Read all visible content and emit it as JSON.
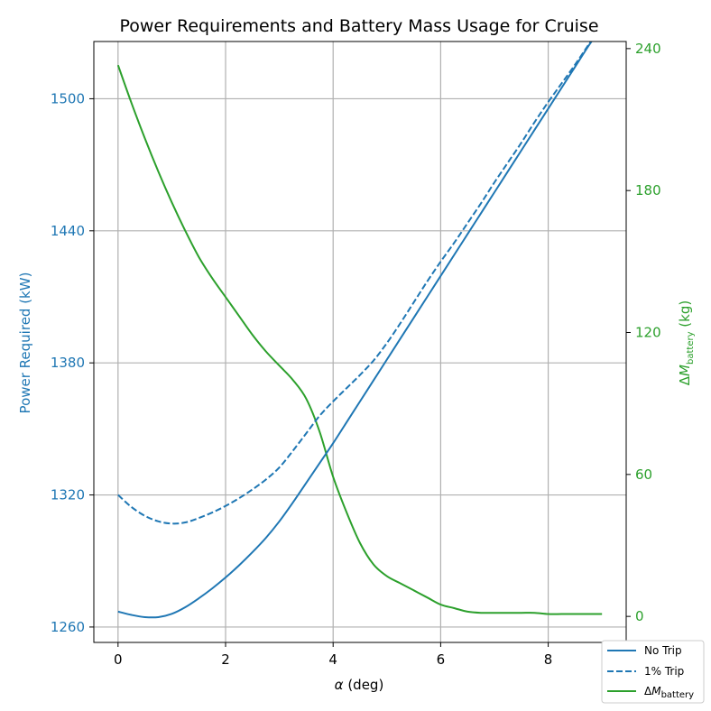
{
  "chart_data": {
    "type": "line",
    "title": "Power Requirements and Battery Mass Usage for Cruise",
    "xlabel": {
      "symbol": "α",
      "unit": " (deg)"
    },
    "ylabel_left": "Power Required (kW)",
    "ylabel_right": {
      "prefix": "Δ",
      "symbol": "M",
      "subscript": "battery",
      "unit": " (kg)"
    },
    "xlim": [
      -0.45,
      9.45
    ],
    "ylim_left": [
      1253,
      1526
    ],
    "ylim_right": [
      -11,
      243
    ],
    "xticks": [
      0,
      2,
      4,
      6,
      8
    ],
    "yticks_left": [
      1260,
      1320,
      1380,
      1440,
      1500
    ],
    "yticks_right": [
      0,
      60,
      120,
      180,
      240
    ],
    "grid": true,
    "legend_position": "bottom-right",
    "colors": {
      "power": "#1f77b4",
      "battery": "#2ca02c",
      "grid": "#b0b0b0"
    },
    "series": [
      {
        "name": "No Trip",
        "axis": "left",
        "style": "solid",
        "x": [
          0,
          0.25,
          0.5,
          0.75,
          1,
          1.25,
          1.5,
          1.75,
          2,
          2.25,
          2.5,
          2.75,
          3,
          3.25,
          3.5,
          3.75,
          4,
          4.25,
          4.5,
          4.75,
          5,
          5.25,
          5.5,
          5.75,
          6,
          6.25,
          6.5,
          6.75,
          7,
          7.25,
          7.5,
          7.75,
          8,
          8.25,
          8.5,
          8.75,
          9
        ],
        "y": [
          1267,
          1265.5,
          1264.5,
          1264.5,
          1266,
          1269,
          1273,
          1277.5,
          1282.5,
          1288,
          1294,
          1300.5,
          1308,
          1316.5,
          1325.5,
          1334.5,
          1343.5,
          1353,
          1362.5,
          1372,
          1381.5,
          1391,
          1400.5,
          1410,
          1419.5,
          1429,
          1438.5,
          1448,
          1457.5,
          1467,
          1476.5,
          1486,
          1495.5,
          1505,
          1514.5,
          1524,
          1533
        ]
      },
      {
        "name": "1% Trip",
        "axis": "left",
        "style": "dashed",
        "x": [
          0,
          0.25,
          0.5,
          0.75,
          1,
          1.25,
          1.5,
          1.75,
          2,
          2.25,
          2.5,
          2.75,
          3,
          3.25,
          3.5,
          3.75,
          4,
          4.25,
          4.5,
          4.75,
          5,
          5.25,
          5.5,
          5.75,
          6,
          6.25,
          6.5,
          6.75,
          7,
          7.25,
          7.5,
          7.75,
          8,
          8.25,
          8.5,
          8.75,
          9
        ],
        "y": [
          1320,
          1314.5,
          1310.5,
          1308,
          1307,
          1307.5,
          1309.5,
          1312,
          1315,
          1318.5,
          1322.5,
          1327,
          1332.5,
          1340,
          1348,
          1356,
          1362.5,
          1368.5,
          1374.5,
          1381,
          1389,
          1398,
          1407.5,
          1417,
          1426,
          1434.5,
          1443.5,
          1452.5,
          1462,
          1471,
          1480,
          1489.5,
          1498.5,
          1507,
          1515.5,
          1524.5,
          1533
        ]
      },
      {
        "name": "ΔM_battery",
        "legend": {
          "prefix": "Δ",
          "symbol": "M",
          "subscript": "battery"
        },
        "axis": "right",
        "style": "solid",
        "x": [
          0,
          0.25,
          0.5,
          0.75,
          1,
          1.25,
          1.5,
          1.75,
          2,
          2.25,
          2.5,
          2.75,
          3,
          3.25,
          3.5,
          3.75,
          4,
          4.25,
          4.5,
          4.75,
          5,
          5.25,
          5.5,
          5.75,
          6,
          6.25,
          6.5,
          6.75,
          7,
          7.25,
          7.5,
          7.75,
          8,
          8.25,
          8.5,
          8.75,
          9
        ],
        "y": [
          233,
          217,
          202,
          188,
          175,
          163,
          152,
          143,
          135,
          127,
          119,
          112,
          106,
          100,
          92,
          78,
          59,
          44,
          31,
          22,
          17,
          14,
          11,
          8,
          5,
          3.5,
          2,
          1.5,
          1.5,
          1.5,
          1.5,
          1.5,
          1,
          1,
          1,
          1,
          1
        ]
      }
    ]
  }
}
